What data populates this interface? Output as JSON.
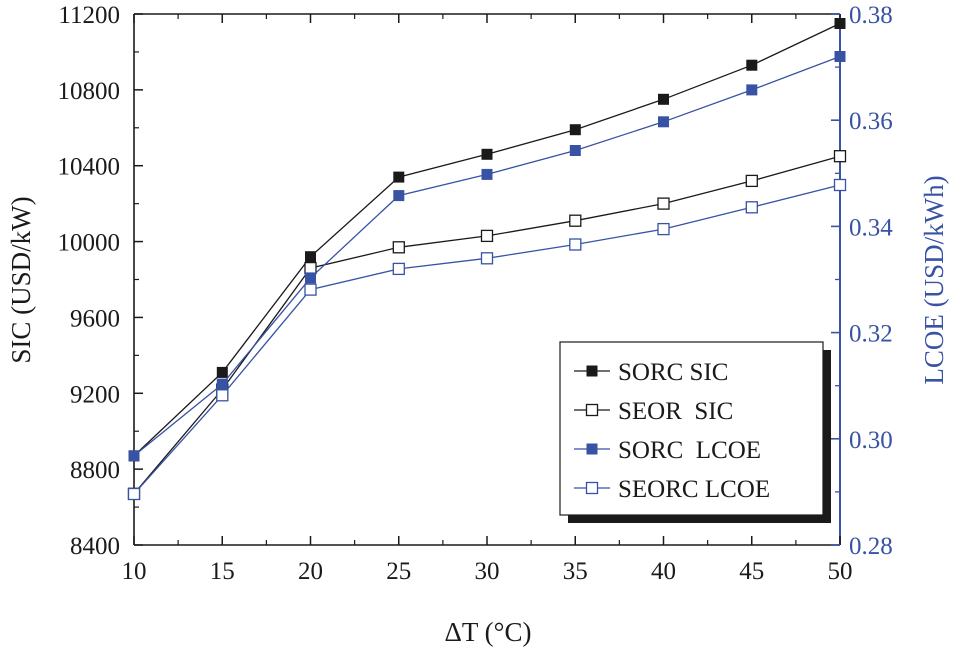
{
  "chart_data": {
    "type": "line",
    "xlabel": "ΔT (°C)",
    "ylabel_left": "SIC (USD/kW)",
    "ylabel_right": "LCOE (USD/kWh)",
    "x": [
      10,
      15,
      20,
      25,
      30,
      35,
      40,
      45,
      50
    ],
    "xlim": [
      10,
      50
    ],
    "xticks": [
      "10",
      "15",
      "20",
      "25",
      "30",
      "35",
      "40",
      "45",
      "50"
    ],
    "ylim_left": [
      8400,
      11200
    ],
    "yticks_left": [
      "8400",
      "8800",
      "9200",
      "9600",
      "10000",
      "10400",
      "10800",
      "11200"
    ],
    "ylim_right": [
      0.28,
      0.38
    ],
    "yticks_right": [
      "0.28",
      "0.30",
      "0.32",
      "0.34",
      "0.36",
      "0.38"
    ],
    "colors": {
      "black": "#1a1a1a",
      "blue": "#3852a4"
    },
    "series": [
      {
        "name": "SORC SIC",
        "axis": "left",
        "color": "#1a1a1a",
        "marker": "filled-square",
        "values": [
          8870,
          9310,
          9920,
          10340,
          10460,
          10590,
          10750,
          10930,
          11150
        ]
      },
      {
        "name": "SEOR  SIC",
        "axis": "left",
        "color": "#1a1a1a",
        "marker": "open-square",
        "values": [
          8670,
          9220,
          9860,
          9970,
          10030,
          10110,
          10200,
          10320,
          10450
        ]
      },
      {
        "name": "SORC  LCOE",
        "axis": "right",
        "color": "#3852a4",
        "marker": "filled-square",
        "values": [
          0.2968,
          0.3103,
          0.3303,
          0.3458,
          0.3498,
          0.3543,
          0.3597,
          0.3657,
          0.372
        ]
      },
      {
        "name": "SEORC LCOE",
        "axis": "right",
        "color": "#3852a4",
        "marker": "open-square",
        "values": [
          0.2896,
          0.3082,
          0.3281,
          0.332,
          0.334,
          0.3366,
          0.3395,
          0.3436,
          0.3478
        ]
      }
    ],
    "legend_position": "lower-right"
  }
}
